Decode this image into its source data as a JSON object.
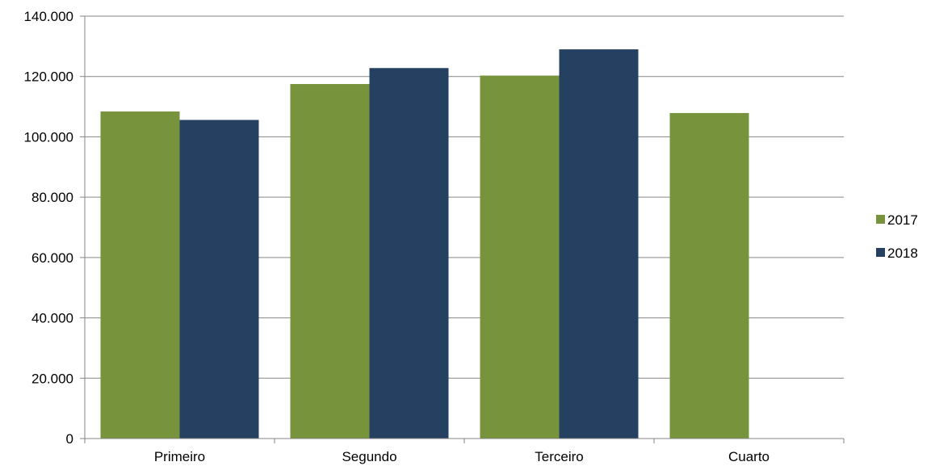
{
  "chart_data": {
    "type": "bar",
    "title": "",
    "xlabel": "",
    "ylabel": "",
    "categories": [
      "Primeiro",
      "Segundo",
      "Terceiro",
      "Cuarto"
    ],
    "series": [
      {
        "name": "2017",
        "color": "#77933c",
        "values": [
          108400,
          117500,
          120300,
          107900
        ]
      },
      {
        "name": "2018",
        "color": "#254061",
        "values": [
          105600,
          122800,
          129000,
          null
        ]
      }
    ],
    "ylim": [
      0,
      140000
    ],
    "yticks": [
      0,
      20000,
      40000,
      60000,
      80000,
      100000,
      120000,
      140000
    ],
    "ytick_labels": [
      "0",
      "20.000",
      "40.000",
      "60.000",
      "80.000",
      "100.000",
      "120.000",
      "140.000"
    ],
    "grid": "horizontal",
    "legend_position": "right"
  }
}
